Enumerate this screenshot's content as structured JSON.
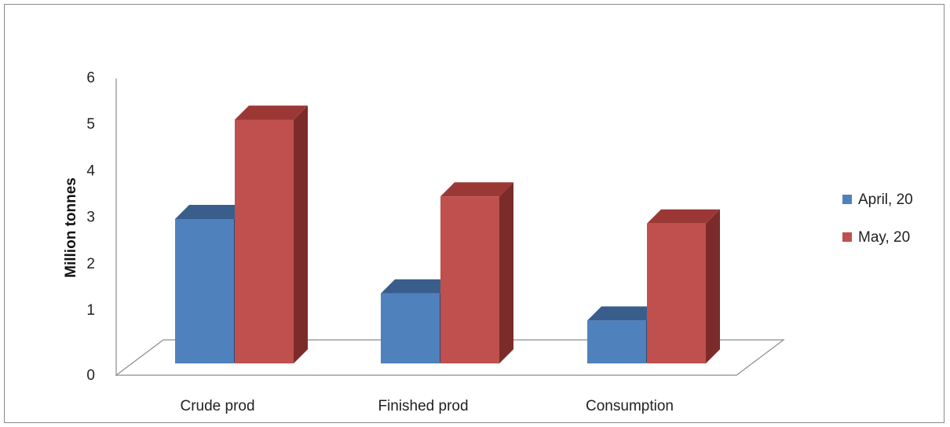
{
  "chart_data": {
    "type": "bar",
    "title": "",
    "xlabel": "",
    "ylabel": "Million tonnes",
    "categories": [
      "Crude prod",
      "Finished prod",
      "Consumption"
    ],
    "series": [
      {
        "name": "April, 20",
        "values": [
          3.2,
          1.55,
          0.95
        ],
        "color": "#4f81bd",
        "top_color": "#395e8c",
        "side_color": "#2d4a70"
      },
      {
        "name": "May, 20",
        "values": [
          5.4,
          3.7,
          3.1
        ],
        "color": "#c0504d",
        "top_color": "#9b3836",
        "side_color": "#7b2c2a"
      }
    ],
    "ylim": [
      0,
      6
    ],
    "yticks": [
      "0",
      "1",
      "2",
      "3",
      "4",
      "5",
      "6"
    ],
    "legend": "right",
    "grid": false
  }
}
